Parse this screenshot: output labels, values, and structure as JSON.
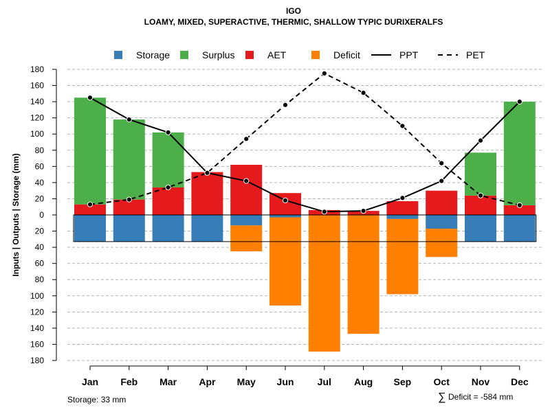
{
  "chart_data": {
    "type": "bar",
    "title": "IGO",
    "subtitle": "LOAMY, MIXED, SUPERACTIVE, THERMIC, SHALLOW TYPIC DURIXERALFS",
    "ylabel": "Inputs | Outputs | Storage    (mm)",
    "ylim": [
      -180,
      180
    ],
    "yticks": [
      180,
      160,
      140,
      120,
      100,
      80,
      60,
      40,
      20,
      0,
      -20,
      -40,
      -60,
      -80,
      -100,
      -120,
      -140,
      -160,
      -180
    ],
    "ytick_labels": [
      "180",
      "160",
      "140",
      "120",
      "100",
      "80",
      "60",
      "40",
      "20",
      "0",
      "20",
      "40",
      "60",
      "80",
      "100",
      "120",
      "140",
      "160",
      "180"
    ],
    "categories": [
      "Jan",
      "Feb",
      "Mar",
      "Apr",
      "May",
      "Jun",
      "Jul",
      "Aug",
      "Sep",
      "Oct",
      "Nov",
      "Dec"
    ],
    "legend": [
      {
        "label": "Storage",
        "kind": "box",
        "color": "#377EB8"
      },
      {
        "label": "Surplus",
        "kind": "box",
        "color": "#4DAF4A"
      },
      {
        "label": "AET",
        "kind": "box",
        "color": "#E41A1C"
      },
      {
        "label": "Deficit",
        "kind": "box",
        "color": "#FF7F00"
      },
      {
        "label": "PPT",
        "kind": "solid",
        "color": "#000000"
      },
      {
        "label": "PET",
        "kind": "dashed",
        "color": "#000000"
      }
    ],
    "series": [
      {
        "name": "AET",
        "color": "#E41A1C",
        "values": [
          13,
          19,
          34,
          53,
          62,
          27,
          6,
          5,
          17,
          30,
          24,
          12
        ]
      },
      {
        "name": "Surplus",
        "color": "#4DAF4A",
        "values": [
          132,
          99,
          68,
          0,
          0,
          0,
          0,
          0,
          0,
          0,
          53,
          128
        ]
      },
      {
        "name": "Storage",
        "color": "#377EB8",
        "values": [
          33,
          33,
          33,
          33,
          13,
          3,
          0,
          0,
          5,
          17,
          33,
          33
        ]
      },
      {
        "name": "Deficit",
        "color": "#FF7F00",
        "values": [
          0,
          0,
          0,
          0,
          32,
          109,
          169,
          147,
          93,
          35,
          0,
          0
        ]
      },
      {
        "name": "PPT",
        "color": "#000000",
        "values": [
          145,
          118,
          102,
          52,
          42,
          18,
          4,
          5,
          21,
          42,
          92,
          140
        ]
      },
      {
        "name": "PET",
        "color": "#000000",
        "values": [
          13,
          19,
          34,
          52,
          94,
          136,
          175,
          151,
          110,
          64,
          24,
          12
        ]
      }
    ],
    "storage_capacity": 33,
    "footer_left": "Storage: 33 mm",
    "footer_right_symbol": "∑",
    "footer_right": "Deficit = -584 mm",
    "grid": true
  }
}
